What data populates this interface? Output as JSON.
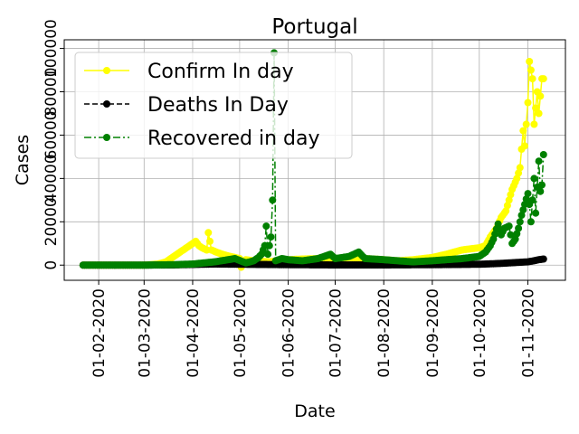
{
  "chart_data": {
    "type": "line",
    "title": "Portugal",
    "xlabel": "Date",
    "ylabel": "Cases",
    "x_range": [
      "2020-01-10",
      "2020-11-25"
    ],
    "ylim": [
      -7000,
      104000
    ],
    "x_ticks": [
      "2020-02-01",
      "2020-03-01",
      "2020-04-01",
      "2020-05-01",
      "2020-06-01",
      "2020-07-01",
      "2020-08-01",
      "2020-09-01",
      "2020-10-01",
      "2020-11-01"
    ],
    "x_tick_labels": [
      "01-02-2020",
      "01-03-2020",
      "01-04-2020",
      "01-05-2020",
      "01-06-2020",
      "01-07-2020",
      "01-08-2020",
      "01-09-2020",
      "01-10-2020",
      "01-11-2020"
    ],
    "y_ticks": [
      0,
      20000,
      40000,
      60000,
      80000,
      100000
    ],
    "y_tick_labels": [
      "0",
      "20000",
      "40000",
      "60000",
      "80000",
      "100000"
    ],
    "grid": true,
    "legend_position": "top-left",
    "series": [
      {
        "name": "Confirm In day",
        "color": "#ffff00",
        "line_style": "solid",
        "points": [
          [
            "2020-01-22",
            0
          ],
          [
            "2020-02-01",
            0
          ],
          [
            "2020-02-10",
            0
          ],
          [
            "2020-02-20",
            0
          ],
          [
            "2020-03-01",
            0
          ],
          [
            "2020-03-05",
            200
          ],
          [
            "2020-03-10",
            500
          ],
          [
            "2020-03-15",
            1500
          ],
          [
            "2020-03-20",
            4000
          ],
          [
            "2020-03-24",
            6000
          ],
          [
            "2020-03-28",
            8000
          ],
          [
            "2020-04-01",
            10000
          ],
          [
            "2020-04-03",
            11000
          ],
          [
            "2020-04-05",
            9000
          ],
          [
            "2020-04-07",
            8000
          ],
          [
            "2020-04-10",
            7000
          ],
          [
            "2020-04-11",
            15000
          ],
          [
            "2020-04-13",
            7000
          ],
          [
            "2020-04-16",
            6000
          ],
          [
            "2020-04-20",
            5000
          ],
          [
            "2020-04-25",
            4000
          ],
          [
            "2020-05-01",
            3000
          ],
          [
            "2020-05-02",
            -1000
          ],
          [
            "2020-05-05",
            2500
          ],
          [
            "2020-05-10",
            2000
          ],
          [
            "2020-05-15",
            1800
          ],
          [
            "2020-05-20",
            1500
          ],
          [
            "2020-05-25",
            2000
          ],
          [
            "2020-06-01",
            2500
          ],
          [
            "2020-06-10",
            2800
          ],
          [
            "2020-06-20",
            3000
          ],
          [
            "2020-07-01",
            3000
          ],
          [
            "2020-07-10",
            3500
          ],
          [
            "2020-07-20",
            3000
          ],
          [
            "2020-08-01",
            2500
          ],
          [
            "2020-08-10",
            2000
          ],
          [
            "2020-08-20",
            2500
          ],
          [
            "2020-09-01",
            3500
          ],
          [
            "2020-09-10",
            5000
          ],
          [
            "2020-09-20",
            7000
          ],
          [
            "2020-10-01",
            8000
          ],
          [
            "2020-10-05",
            9000
          ],
          [
            "2020-10-08",
            13000
          ],
          [
            "2020-10-12",
            17000
          ],
          [
            "2020-10-15",
            22000
          ],
          [
            "2020-10-18",
            25000
          ],
          [
            "2020-10-20",
            30000
          ],
          [
            "2020-10-22",
            35000
          ],
          [
            "2020-10-25",
            40000
          ],
          [
            "2020-10-27",
            45000
          ],
          [
            "2020-10-29",
            62000
          ],
          [
            "2020-10-30",
            55000
          ],
          [
            "2020-11-01",
            75000
          ],
          [
            "2020-11-02",
            94000
          ],
          [
            "2020-11-04",
            86000
          ],
          [
            "2020-11-05",
            65000
          ],
          [
            "2020-11-07",
            80000
          ],
          [
            "2020-11-08",
            70000
          ],
          [
            "2020-11-10",
            86000
          ],
          [
            "2020-11-11",
            86000
          ]
        ]
      },
      {
        "name": "Deaths In Day",
        "color": "#000000",
        "line_style": "dashed",
        "points": [
          [
            "2020-01-22",
            0
          ],
          [
            "2020-03-01",
            0
          ],
          [
            "2020-03-20",
            100
          ],
          [
            "2020-04-01",
            300
          ],
          [
            "2020-04-15",
            500
          ],
          [
            "2020-05-01",
            400
          ],
          [
            "2020-05-15",
            300
          ],
          [
            "2020-06-01",
            200
          ],
          [
            "2020-07-01",
            100
          ],
          [
            "2020-08-01",
            100
          ],
          [
            "2020-09-01",
            200
          ],
          [
            "2020-10-01",
            400
          ],
          [
            "2020-10-15",
            800
          ],
          [
            "2020-10-25",
            1200
          ],
          [
            "2020-11-01",
            1500
          ],
          [
            "2020-11-05",
            2000
          ],
          [
            "2020-11-08",
            2500
          ],
          [
            "2020-11-11",
            2800
          ]
        ]
      },
      {
        "name": "Recovered in day",
        "color": "#008000",
        "line_style": "dashdot",
        "points": [
          [
            "2020-01-22",
            0
          ],
          [
            "2020-02-01",
            0
          ],
          [
            "2020-03-01",
            0
          ],
          [
            "2020-03-20",
            200
          ],
          [
            "2020-04-01",
            500
          ],
          [
            "2020-04-15",
            1500
          ],
          [
            "2020-04-28",
            3000
          ],
          [
            "2020-05-05",
            1000
          ],
          [
            "2020-05-10",
            2000
          ],
          [
            "2020-05-13",
            3500
          ],
          [
            "2020-05-15",
            5000
          ],
          [
            "2020-05-17",
            9000
          ],
          [
            "2020-05-18",
            18000
          ],
          [
            "2020-05-19",
            5000
          ],
          [
            "2020-05-21",
            13000
          ],
          [
            "2020-05-22",
            30000
          ],
          [
            "2020-05-23",
            98000
          ],
          [
            "2020-05-24",
            2000
          ],
          [
            "2020-05-28",
            3000
          ],
          [
            "2020-06-01",
            2500
          ],
          [
            "2020-06-10",
            2000
          ],
          [
            "2020-06-20",
            3000
          ],
          [
            "2020-06-28",
            5000
          ],
          [
            "2020-07-01",
            3000
          ],
          [
            "2020-07-10",
            4000
          ],
          [
            "2020-07-16",
            6000
          ],
          [
            "2020-07-20",
            3000
          ],
          [
            "2020-08-01",
            2500
          ],
          [
            "2020-08-10",
            2000
          ],
          [
            "2020-08-20",
            1500
          ],
          [
            "2020-09-01",
            2000
          ],
          [
            "2020-09-10",
            2500
          ],
          [
            "2020-09-20",
            3000
          ],
          [
            "2020-10-01",
            4000
          ],
          [
            "2020-10-05",
            6000
          ],
          [
            "2020-10-08",
            9000
          ],
          [
            "2020-10-10",
            12000
          ],
          [
            "2020-10-13",
            19000
          ],
          [
            "2020-10-15",
            14000
          ],
          [
            "2020-10-17",
            17000
          ],
          [
            "2020-10-20",
            18000
          ],
          [
            "2020-10-22",
            10000
          ],
          [
            "2020-10-24",
            12000
          ],
          [
            "2020-10-26",
            17000
          ],
          [
            "2020-10-28",
            23000
          ],
          [
            "2020-10-30",
            28000
          ],
          [
            "2020-11-01",
            33000
          ],
          [
            "2020-11-02",
            28000
          ],
          [
            "2020-11-03",
            20000
          ],
          [
            "2020-11-05",
            40000
          ],
          [
            "2020-11-06",
            24000
          ],
          [
            "2020-11-08",
            48000
          ],
          [
            "2020-11-09",
            34000
          ],
          [
            "2020-11-10",
            37000
          ],
          [
            "2020-11-11",
            51000
          ]
        ]
      }
    ]
  }
}
